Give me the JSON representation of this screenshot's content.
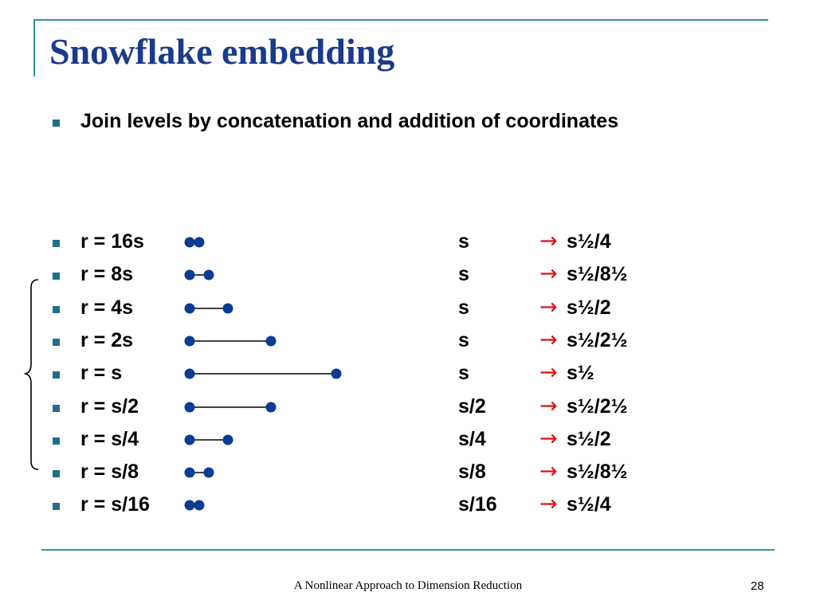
{
  "slide": {
    "title": "Snowflake embedding",
    "bullet": "Join levels by concatenation and addition of coordinates",
    "footer": "A Nonlinear Approach to Dimension Reduction",
    "page_number": "28"
  },
  "rows": [
    {
      "label": "r = 16s",
      "scale": "s",
      "arrow": "→",
      "result": "s½/4",
      "segment_length": 12
    },
    {
      "label": "r = 8s",
      "scale": "s",
      "arrow": "→",
      "result": "s½/8½",
      "segment_length": 24
    },
    {
      "label": "r = 4s",
      "scale": "s",
      "arrow": "→",
      "result": "s½/2",
      "segment_length": 48
    },
    {
      "label": "r = 2s",
      "scale": "s",
      "arrow": "→",
      "result": "s½/2½",
      "segment_length": 102
    },
    {
      "label": "r = s",
      "scale": "s",
      "arrow": "→",
      "result": "s½",
      "segment_length": 184
    },
    {
      "label": "r = s/2",
      "scale": "s/2",
      "arrow": "→",
      "result": "s½/2½",
      "segment_length": 102
    },
    {
      "label": "r = s/4",
      "scale": "s/4",
      "arrow": "→",
      "result": "s½/2",
      "segment_length": 48
    },
    {
      "label": "r = s/8",
      "scale": "s/8",
      "arrow": "→",
      "result": "s½/8½",
      "segment_length": 24
    },
    {
      "label": "r = s/16",
      "scale": "s/16",
      "arrow": "→",
      "result": "s½/4",
      "segment_length": 12
    }
  ],
  "colors": {
    "title": "#1a3a8a",
    "accent_line": "#2a9a9a",
    "bullet": "#1f6f8b",
    "segment": "#0a3d91",
    "arrow": "#e01010"
  }
}
